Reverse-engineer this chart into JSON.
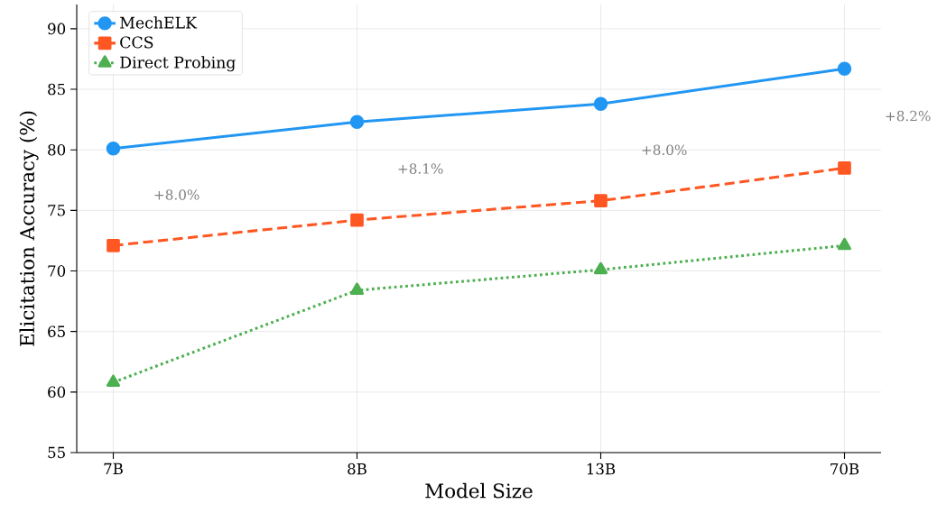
{
  "chart_data": {
    "type": "line",
    "xlabel": "Model Size",
    "ylabel": "Elicitation Accuracy (%)",
    "categories": [
      "7B",
      "8B",
      "13B",
      "70B"
    ],
    "series": [
      {
        "name": "MechELK",
        "color": "#2196f3",
        "values": [
          80.1,
          82.3,
          83.8,
          86.7
        ],
        "marker": "circle",
        "line_style": "solid"
      },
      {
        "name": "CCS",
        "color": "#ff5722",
        "values": [
          72.1,
          74.2,
          75.8,
          78.5
        ],
        "marker": "square",
        "line_style": "dashed"
      },
      {
        "name": "Direct Probing",
        "color": "#4caf50",
        "values": [
          60.8,
          68.4,
          70.1,
          72.1
        ],
        "marker": "triangle",
        "line_style": "dotted"
      }
    ],
    "annotations": [
      "+8.0%",
      "+8.1%",
      "+8.0%",
      "+8.2%"
    ],
    "ylim": [
      55,
      92
    ],
    "yticks": [
      55,
      60,
      65,
      70,
      75,
      80,
      85,
      90
    ],
    "grid": true,
    "legend": "top left"
  }
}
